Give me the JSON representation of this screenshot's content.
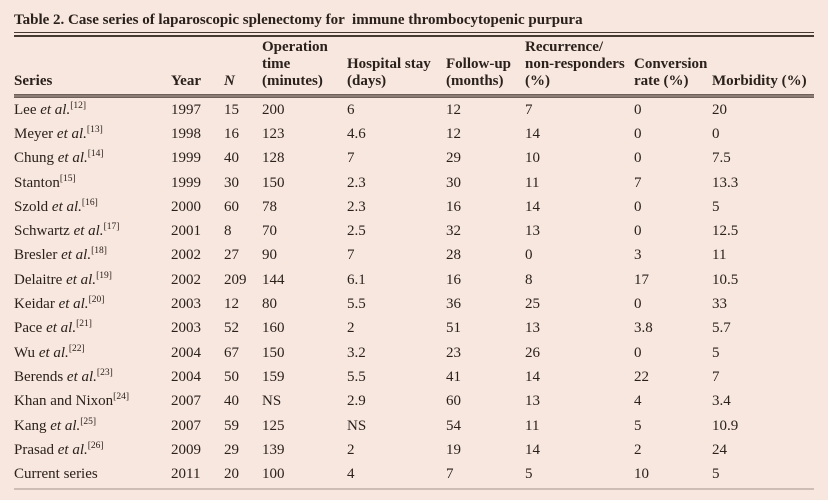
{
  "title": "Table 2. Case series of laparoscopic splenectomy for  immune thrombocytopenic purpura",
  "colors": {
    "background": "#f8e7de",
    "text": "#2a211d",
    "rule_dark": "#46392f",
    "header_rule_edge": "#6e605a",
    "header_rule_mid": "#8d7d75",
    "bottom_rule": "#cdbdb4"
  },
  "table": {
    "columns": [
      {
        "id": "series",
        "lines": [
          "Series"
        ],
        "italic": false
      },
      {
        "id": "year",
        "lines": [
          "Year"
        ],
        "italic": false
      },
      {
        "id": "n",
        "lines": [
          "N"
        ],
        "italic": true
      },
      {
        "id": "operation-time",
        "lines": [
          "Operation",
          "time",
          "(minutes)"
        ],
        "italic": false
      },
      {
        "id": "hospital-stay",
        "lines": [
          "Hospital stay",
          "(days)"
        ],
        "italic": false
      },
      {
        "id": "follow-up",
        "lines": [
          "Follow-up",
          "(months)"
        ],
        "italic": false
      },
      {
        "id": "recurrence",
        "lines": [
          "Recurrence/",
          "non-responders",
          "(%)"
        ],
        "italic": false
      },
      {
        "id": "conversion-rate",
        "lines": [
          "Conversion",
          "rate (%)"
        ],
        "italic": false
      },
      {
        "id": "morbidity",
        "lines": [
          "Morbidity (%)"
        ],
        "italic": false
      }
    ],
    "rows": [
      {
        "name": "Lee",
        "etal": "et al.",
        "ref": "[12]",
        "year": "1997",
        "n": "15",
        "op": "200",
        "stay": "6",
        "fu": "12",
        "rec": "7",
        "conv": "0",
        "morb": "20"
      },
      {
        "name": "Meyer",
        "etal": "et al.",
        "ref": "[13]",
        "year": "1998",
        "n": "16",
        "op": "123",
        "stay": "4.6",
        "fu": "12",
        "rec": "14",
        "conv": "0",
        "morb": "0"
      },
      {
        "name": "Chung",
        "etal": "et al.",
        "ref": "[14]",
        "year": "1999",
        "n": "40",
        "op": "128",
        "stay": "7",
        "fu": "29",
        "rec": "10",
        "conv": "0",
        "morb": "7.5"
      },
      {
        "name": "Stanton",
        "etal": "",
        "ref": "[15]",
        "year": "1999",
        "n": "30",
        "op": "150",
        "stay": "2.3",
        "fu": "30",
        "rec": "11",
        "conv": "7",
        "morb": "13.3"
      },
      {
        "name": "Szold",
        "etal": "et al.",
        "ref": "[16]",
        "year": "2000",
        "n": "60",
        "op": "78",
        "stay": "2.3",
        "fu": "16",
        "rec": "14",
        "conv": "0",
        "morb": "5"
      },
      {
        "name": "Schwartz",
        "etal": "et al.",
        "ref": "[17]",
        "year": "2001",
        "n": "8",
        "op": "70",
        "stay": "2.5",
        "fu": "32",
        "rec": "13",
        "conv": "0",
        "morb": "12.5"
      },
      {
        "name": "Bresler",
        "etal": "et al.",
        "ref": "[18]",
        "year": "2002",
        "n": "27",
        "op": "90",
        "stay": "7",
        "fu": "28",
        "rec": "0",
        "conv": "3",
        "morb": "11"
      },
      {
        "name": "Delaitre",
        "etal": "et al.",
        "ref": "[19]",
        "year": "2002",
        "n": "209",
        "op": "144",
        "stay": "6.1",
        "fu": "16",
        "rec": "8",
        "conv": "17",
        "morb": "10.5"
      },
      {
        "name": "Keidar",
        "etal": "et al.",
        "ref": "[20]",
        "year": "2003",
        "n": "12",
        "op": "80",
        "stay": "5.5",
        "fu": "36",
        "rec": "25",
        "conv": "0",
        "morb": "33"
      },
      {
        "name": "Pace",
        "etal": "et al.",
        "ref": "[21]",
        "year": "2003",
        "n": "52",
        "op": "160",
        "stay": "2",
        "fu": "51",
        "rec": "13",
        "conv": "3.8",
        "morb": "5.7"
      },
      {
        "name": "Wu",
        "etal": "et al.",
        "ref": "[22]",
        "year": "2004",
        "n": "67",
        "op": "150",
        "stay": "3.2",
        "fu": "23",
        "rec": "26",
        "conv": "0",
        "morb": "5"
      },
      {
        "name": "Berends",
        "etal": "et al.",
        "ref": "[23]",
        "year": "2004",
        "n": "50",
        "op": "159",
        "stay": "5.5",
        "fu": "41",
        "rec": "14",
        "conv": "22",
        "morb": "7"
      },
      {
        "name": "Khan and Nixon",
        "etal": "",
        "ref": "[24]",
        "year": "2007",
        "n": "40",
        "op": "NS",
        "stay": "2.9",
        "fu": "60",
        "rec": "13",
        "conv": "4",
        "morb": "3.4"
      },
      {
        "name": "Kang",
        "etal": "et al.",
        "ref": "[25]",
        "year": "2007",
        "n": "59",
        "op": "125",
        "stay": "NS",
        "fu": "54",
        "rec": "11",
        "conv": "5",
        "morb": "10.9"
      },
      {
        "name": "Prasad",
        "etal": "et al.",
        "ref": "[26]",
        "year": "2009",
        "n": "29",
        "op": "139",
        "stay": "2",
        "fu": "19",
        "rec": "14",
        "conv": "2",
        "morb": "24"
      },
      {
        "name": "Current series",
        "etal": "",
        "ref": "",
        "year": "2011",
        "n": "20",
        "op": "100",
        "stay": "4",
        "fu": "7",
        "rec": "5",
        "conv": "10",
        "morb": "5"
      }
    ]
  }
}
